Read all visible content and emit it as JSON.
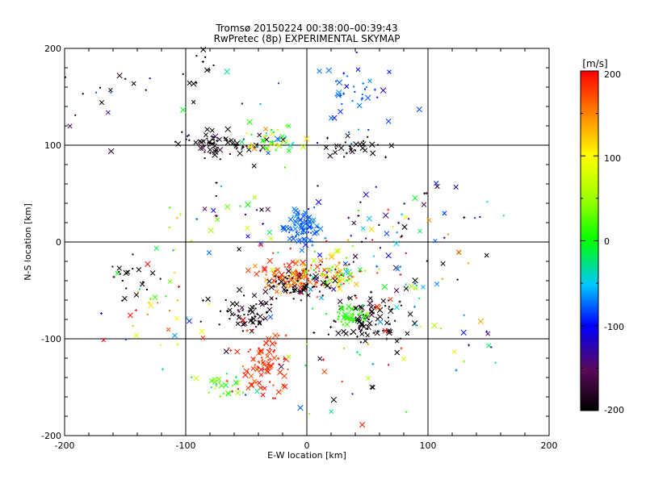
{
  "chart_data": {
    "type": "scatter",
    "title": "Tromsø 20150224 00:38:00–00:39:43",
    "subtitle": "RwPretec (8p) EXPERIMENTAL SKYMAP",
    "xlabel": "E-W location [km]",
    "ylabel": "N-S location [km]",
    "xlim": [
      -200,
      200
    ],
    "ylim": [
      -200,
      200
    ],
    "x_ticks": [
      "-200",
      "-100",
      "0",
      "100",
      "200"
    ],
    "y_ticks": [
      "-200",
      "-100",
      "0",
      "100",
      "200"
    ],
    "grid": true,
    "colorbar": {
      "label": "[m/s]",
      "range": [
        -200,
        200
      ],
      "ticks": [
        "200",
        "100",
        "0",
        "-100",
        "-200"
      ],
      "colormap": "black-purple-blue-cyan-green-yellow-red"
    },
    "marker_legend": "none",
    "clusters": [
      {
        "x": -5,
        "y": 14,
        "sx": 7,
        "sy": 8,
        "vel": -75,
        "vsd": 10,
        "n": 90
      },
      {
        "x": 40,
        "y": 155,
        "sx": 16,
        "sy": 18,
        "vel": -80,
        "vsd": 15,
        "n": 40
      },
      {
        "x": -70,
        "y": 102,
        "sx": 16,
        "sy": 6,
        "vel": -200,
        "vsd": 15,
        "n": 70
      },
      {
        "x": -25,
        "y": 105,
        "sx": 15,
        "sy": 8,
        "vel": 40,
        "vsd": 70,
        "n": 55
      },
      {
        "x": 40,
        "y": 100,
        "sx": 14,
        "sy": 6,
        "vel": -200,
        "vsd": 15,
        "n": 30
      },
      {
        "x": -10,
        "y": -35,
        "sx": 16,
        "sy": 10,
        "vel": 170,
        "vsd": 30,
        "n": 110
      },
      {
        "x": 22,
        "y": -32,
        "sx": 14,
        "sy": 10,
        "vel": 80,
        "vsd": 110,
        "n": 80
      },
      {
        "x": -5,
        "y": -45,
        "sx": 14,
        "sy": 9,
        "vel": -200,
        "vsd": 15,
        "n": 60
      },
      {
        "x": 50,
        "y": -80,
        "sx": 14,
        "sy": 11,
        "vel": -200,
        "vsd": 15,
        "n": 90
      },
      {
        "x": 33,
        "y": -75,
        "sx": 6,
        "sy": 5,
        "vel": 10,
        "vsd": 10,
        "n": 35
      },
      {
        "x": -50,
        "y": -75,
        "sx": 14,
        "sy": 10,
        "vel": -200,
        "vsd": 15,
        "n": 60
      },
      {
        "x": -38,
        "y": -130,
        "sx": 11,
        "sy": 15,
        "vel": 185,
        "vsd": 15,
        "n": 90
      },
      {
        "x": -72,
        "y": -150,
        "sx": 8,
        "sy": 8,
        "vel": 30,
        "vsd": 35,
        "n": 25
      },
      {
        "x": -120,
        "y": -60,
        "sx": 22,
        "sy": 40,
        "vel": 120,
        "vsd": 100,
        "n": 40
      },
      {
        "x": -140,
        "y": -35,
        "sx": 14,
        "sy": 10,
        "vel": -200,
        "vsd": 10,
        "n": 20
      },
      {
        "x": 75,
        "y": -20,
        "sx": 30,
        "sy": 30,
        "vel": 0,
        "vsd": 130,
        "n": 60
      },
      {
        "x": -40,
        "y": 30,
        "sx": 45,
        "sy": 25,
        "vel": 0,
        "vsd": 140,
        "n": 40
      },
      {
        "x": 100,
        "y": 30,
        "sx": 45,
        "sy": 20,
        "vel": -150,
        "vsd": 60,
        "n": 30
      },
      {
        "x": 20,
        "y": -130,
        "sx": 40,
        "sy": 30,
        "vel": 0,
        "vsd": 140,
        "n": 35
      },
      {
        "x": -110,
        "y": 140,
        "sx": 40,
        "sy": 25,
        "vel": -150,
        "vsd": 60,
        "n": 20
      },
      {
        "x": -88,
        "y": 178,
        "sx": 5,
        "sy": 12,
        "vel": -200,
        "vsd": 5,
        "n": 10
      },
      {
        "x": -160,
        "y": 165,
        "sx": 20,
        "sy": 10,
        "vel": -200,
        "vsd": 20,
        "n": 8
      },
      {
        "x": 110,
        "y": -110,
        "sx": 30,
        "sy": 25,
        "vel": 40,
        "vsd": 120,
        "n": 20
      }
    ]
  }
}
